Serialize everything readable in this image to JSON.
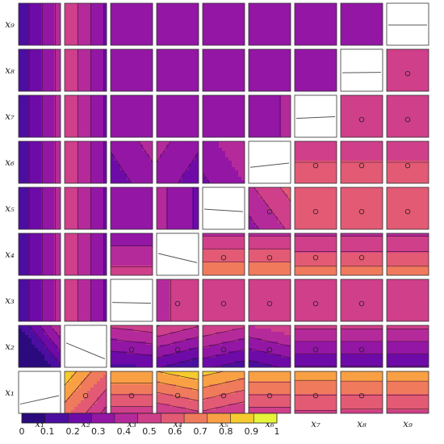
{
  "chart_data": {
    "type": "heatmap",
    "variables": [
      "x₁",
      "x₂",
      "x₃",
      "x₄",
      "x₅",
      "x₆",
      "x₇",
      "x₈",
      "x₉"
    ],
    "description_free": true,
    "color_scale": {
      "min": 0,
      "max": 1,
      "levels": 11,
      "ticks": [
        "0",
        "0.1",
        "0.2",
        "0.3",
        "0.4",
        "0.5",
        "0.6",
        "0.7",
        "0.8",
        "0.9",
        "1"
      ],
      "colors": [
        "#2b0a7e",
        "#4c0ea0",
        "#6e0aa8",
        "#9316a5",
        "#b52a9a",
        "#cf3f8a",
        "#e35a74",
        "#f07a5c",
        "#f9a044",
        "#f6cb2e",
        "#e6f43a"
      ]
    },
    "diagonal": {
      "style": "white-box-with-line",
      "line_y": [
        [
          0.78,
          0.58
        ],
        [
          0.42,
          0.8
        ],
        [
          0.55,
          0.57
        ],
        [
          0.48,
          0.7
        ],
        [
          0.52,
          0.58
        ],
        [
          0.62,
          0.52
        ],
        [
          0.55,
          0.51
        ],
        [
          0.56,
          0.55
        ],
        [
          0.52,
          0.52
        ]
      ]
    },
    "panels": [
      {
        "row": 1,
        "col": 2,
        "v0": 0.72,
        "dx": -0.14,
        "dy": 0.12,
        "marker": true
      },
      {
        "row": 1,
        "col": 3,
        "v0": 0.72,
        "dx": 0.0,
        "dy": 0.18,
        "marker": true
      },
      {
        "row": 1,
        "col": 4,
        "v0": 0.74,
        "dx": 0.04,
        "dy": 0.2,
        "marker": true
      },
      {
        "row": 1,
        "col": 5,
        "v0": 0.72,
        "dx": -0.04,
        "dy": 0.18,
        "marker": true
      },
      {
        "row": 1,
        "col": 6,
        "v0": 0.72,
        "dx": 0.0,
        "dy": 0.17,
        "marker": true
      },
      {
        "row": 1,
        "col": 7,
        "v0": 0.72,
        "dx": 0.0,
        "dy": 0.14,
        "marker": true
      },
      {
        "row": 1,
        "col": 8,
        "v0": 0.72,
        "dx": 0.0,
        "dy": 0.15,
        "marker": true
      },
      {
        "row": 1,
        "col": 9,
        "v0": 0.72,
        "dx": 0.0,
        "dy": 0.15,
        "marker": false
      },
      {
        "row": 2,
        "col": 1,
        "v0": 0.14,
        "dx": 0.2,
        "dy": 0.16,
        "marker": false
      },
      {
        "row": 2,
        "col": 3,
        "v0": 0.36,
        "dx": 0.02,
        "dy": 0.18,
        "marker": true
      },
      {
        "row": 2,
        "col": 4,
        "v0": 0.36,
        "dx": -0.05,
        "dy": 0.2,
        "marker": true
      },
      {
        "row": 2,
        "col": 5,
        "v0": 0.37,
        "dx": -0.04,
        "dy": 0.19,
        "marker": true
      },
      {
        "row": 2,
        "col": 6,
        "v0": 0.36,
        "dx": 0.04,
        "dy": 0.18,
        "marker": true
      },
      {
        "row": 2,
        "col": 7,
        "v0": 0.36,
        "dx": 0.0,
        "dy": 0.17,
        "marker": true
      },
      {
        "row": 2,
        "col": 8,
        "v0": 0.36,
        "dx": 0.0,
        "dy": 0.17,
        "marker": true
      },
      {
        "row": 2,
        "col": 9,
        "v0": 0.36,
        "dx": 0.0,
        "dy": 0.17,
        "marker": false
      },
      {
        "row": 3,
        "col": 1,
        "v0": 0.28,
        "dx": 0.16,
        "dy": 0.0,
        "marker": false
      },
      {
        "row": 3,
        "col": 2,
        "v0": 0.44,
        "dx": -0.16,
        "dy": 0.0,
        "marker": false
      },
      {
        "row": 3,
        "col": 4,
        "v0": 0.52,
        "dx": 0.06,
        "dy": 0.0,
        "marker": true
      },
      {
        "row": 3,
        "col": 5,
        "v0": 0.58,
        "dx": 0.0,
        "dy": 0.0,
        "marker": true
      },
      {
        "row": 3,
        "col": 6,
        "v0": 0.56,
        "dx": 0.04,
        "dy": 0.0,
        "marker": true
      },
      {
        "row": 3,
        "col": 7,
        "v0": 0.58,
        "dx": 0.0,
        "dy": 0.0,
        "marker": true
      },
      {
        "row": 3,
        "col": 8,
        "v0": 0.58,
        "dx": 0.0,
        "dy": 0.0,
        "marker": true
      },
      {
        "row": 3,
        "col": 9,
        "v0": 0.58,
        "dx": 0.0,
        "dy": 0.0,
        "marker": false
      },
      {
        "row": 4,
        "col": 1,
        "v0": 0.28,
        "dx": 0.16,
        "dy": 0.0,
        "marker": false
      },
      {
        "row": 4,
        "col": 2,
        "v0": 0.44,
        "dx": -0.16,
        "dy": 0.0,
        "marker": false
      },
      {
        "row": 4,
        "col": 3,
        "v0": 0.44,
        "dx": 0.0,
        "dy": -0.1,
        "marker": false
      },
      {
        "row": 4,
        "col": 5,
        "v0": 0.64,
        "dx": 0.0,
        "dy": -0.16,
        "marker": true
      },
      {
        "row": 4,
        "col": 6,
        "v0": 0.64,
        "dx": 0.0,
        "dy": -0.16,
        "marker": true
      },
      {
        "row": 4,
        "col": 7,
        "v0": 0.62,
        "dx": 0.0,
        "dy": -0.14,
        "marker": true
      },
      {
        "row": 4,
        "col": 8,
        "v0": 0.62,
        "dx": 0.0,
        "dy": -0.14,
        "marker": true
      },
      {
        "row": 4,
        "col": 9,
        "v0": 0.62,
        "dx": 0.0,
        "dy": -0.14,
        "marker": false
      },
      {
        "row": 5,
        "col": 1,
        "v0": 0.28,
        "dx": 0.16,
        "dy": 0.0,
        "marker": false
      },
      {
        "row": 5,
        "col": 2,
        "v0": 0.44,
        "dx": -0.16,
        "dy": 0.0,
        "marker": false
      },
      {
        "row": 5,
        "col": 3,
        "v0": 0.36,
        "dx": 0.0,
        "dy": 0.0,
        "marker": false
      },
      {
        "row": 5,
        "col": 4,
        "v0": 0.36,
        "dx": -0.08,
        "dy": 0.0,
        "marker": false
      },
      {
        "row": 5,
        "col": 6,
        "v0": 0.5,
        "dx": 0.08,
        "dy": 0.06,
        "marker": true
      },
      {
        "row": 5,
        "col": 7,
        "v0": 0.6,
        "dx": 0.0,
        "dy": 0.0,
        "marker": true
      },
      {
        "row": 5,
        "col": 8,
        "v0": 0.6,
        "dx": 0.0,
        "dy": 0.0,
        "marker": true
      },
      {
        "row": 5,
        "col": 9,
        "v0": 0.6,
        "dx": 0.0,
        "dy": 0.0,
        "marker": true
      },
      {
        "row": 6,
        "col": 1,
        "v0": 0.28,
        "dx": 0.16,
        "dy": 0.0,
        "marker": false
      },
      {
        "row": 6,
        "col": 2,
        "v0": 0.44,
        "dx": -0.16,
        "dy": 0.0,
        "marker": false
      },
      {
        "row": 6,
        "col": 3,
        "v0": 0.34,
        "dx": 0.06,
        "dy": 0.04,
        "marker": false
      },
      {
        "row": 6,
        "col": 4,
        "v0": 0.34,
        "dx": -0.06,
        "dy": 0.04,
        "marker": false
      },
      {
        "row": 6,
        "col": 5,
        "v0": 0.38,
        "dx": 0.06,
        "dy": 0.04,
        "marker": false
      },
      {
        "row": 6,
        "col": 7,
        "v0": 0.6,
        "dx": 0.0,
        "dy": -0.06,
        "marker": true
      },
      {
        "row": 6,
        "col": 8,
        "v0": 0.6,
        "dx": 0.0,
        "dy": -0.06,
        "marker": true
      },
      {
        "row": 6,
        "col": 9,
        "v0": 0.6,
        "dx": 0.0,
        "dy": -0.06,
        "marker": true
      },
      {
        "row": 7,
        "col": 1,
        "v0": 0.28,
        "dx": 0.16,
        "dy": 0.0,
        "marker": false
      },
      {
        "row": 7,
        "col": 2,
        "v0": 0.44,
        "dx": -0.16,
        "dy": 0.0,
        "marker": false
      },
      {
        "row": 7,
        "col": 3,
        "v0": 0.36,
        "dx": 0.0,
        "dy": 0.0,
        "marker": false
      },
      {
        "row": 7,
        "col": 4,
        "v0": 0.36,
        "dx": -0.04,
        "dy": 0.0,
        "marker": false
      },
      {
        "row": 7,
        "col": 5,
        "v0": 0.38,
        "dx": 0.0,
        "dy": 0.0,
        "marker": false
      },
      {
        "row": 7,
        "col": 6,
        "v0": 0.38,
        "dx": 0.04,
        "dy": 0.0,
        "marker": false
      },
      {
        "row": 7,
        "col": 8,
        "v0": 0.58,
        "dx": 0.0,
        "dy": 0.0,
        "marker": true
      },
      {
        "row": 7,
        "col": 9,
        "v0": 0.58,
        "dx": 0.0,
        "dy": 0.0,
        "marker": true
      },
      {
        "row": 8,
        "col": 1,
        "v0": 0.28,
        "dx": 0.16,
        "dy": 0.0,
        "marker": false
      },
      {
        "row": 8,
        "col": 2,
        "v0": 0.44,
        "dx": -0.16,
        "dy": 0.0,
        "marker": false
      },
      {
        "row": 8,
        "col": 3,
        "v0": 0.36,
        "dx": 0.0,
        "dy": 0.0,
        "marker": false
      },
      {
        "row": 8,
        "col": 4,
        "v0": 0.36,
        "dx": -0.04,
        "dy": 0.0,
        "marker": false
      },
      {
        "row": 8,
        "col": 5,
        "v0": 0.36,
        "dx": 0.0,
        "dy": 0.0,
        "marker": false
      },
      {
        "row": 8,
        "col": 6,
        "v0": 0.37,
        "dx": 0.02,
        "dy": 0.0,
        "marker": false
      },
      {
        "row": 8,
        "col": 7,
        "v0": 0.36,
        "dx": 0.0,
        "dy": 0.0,
        "marker": false
      },
      {
        "row": 8,
        "col": 9,
        "v0": 0.58,
        "dx": 0.0,
        "dy": 0.0,
        "marker": true
      },
      {
        "row": 9,
        "col": 1,
        "v0": 0.28,
        "dx": 0.16,
        "dy": 0.0,
        "marker": false
      },
      {
        "row": 9,
        "col": 2,
        "v0": 0.44,
        "dx": -0.16,
        "dy": 0.0,
        "marker": false
      },
      {
        "row": 9,
        "col": 3,
        "v0": 0.36,
        "dx": 0.0,
        "dy": 0.0,
        "marker": false
      },
      {
        "row": 9,
        "col": 4,
        "v0": 0.36,
        "dx": -0.04,
        "dy": 0.0,
        "marker": false
      },
      {
        "row": 9,
        "col": 5,
        "v0": 0.36,
        "dx": 0.0,
        "dy": 0.0,
        "marker": false
      },
      {
        "row": 9,
        "col": 6,
        "v0": 0.36,
        "dx": 0.0,
        "dy": 0.0,
        "marker": false
      },
      {
        "row": 9,
        "col": 7,
        "v0": 0.36,
        "dx": 0.0,
        "dy": 0.0,
        "marker": false
      },
      {
        "row": 9,
        "col": 8,
        "v0": 0.36,
        "dx": 0.0,
        "dy": 0.0,
        "marker": false
      }
    ]
  }
}
